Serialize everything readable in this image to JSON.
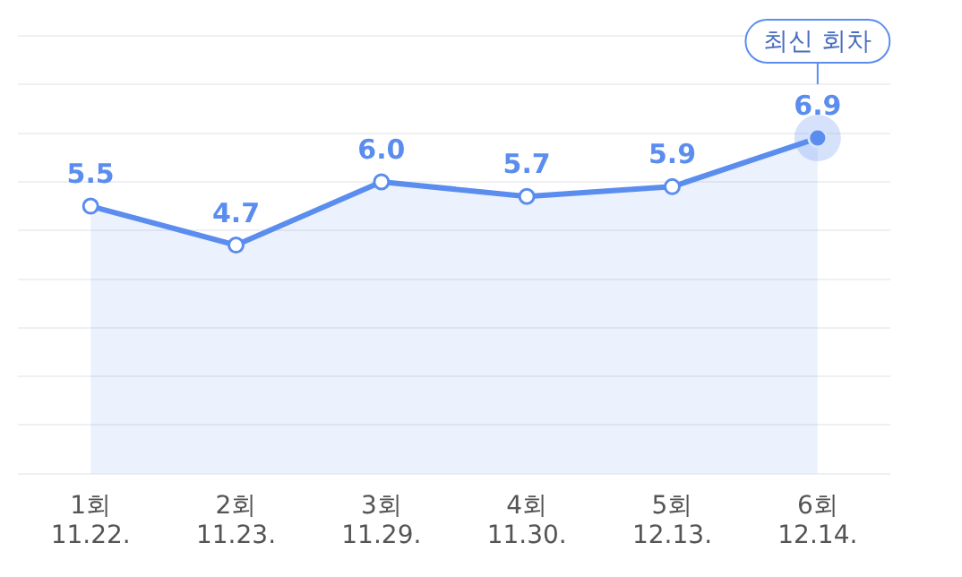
{
  "chart_data": {
    "type": "area",
    "categories": [
      "1회\n11.22.",
      "2회\n11.23.",
      "3회\n11.29.",
      "4회\n11.30.",
      "5회\n12.13.",
      "6회\n12.14."
    ],
    "series": [
      {
        "color": "#5b8def",
        "values": [
          5.5,
          4.7,
          6.0,
          5.7,
          5.9,
          6.9
        ],
        "value_labels": [
          "5.5",
          "4.7",
          "6.0",
          "5.7",
          "5.9",
          "6.9"
        ]
      }
    ],
    "grid": "y",
    "legend": false,
    "marker": "circle",
    "line_style": "solid",
    "annotations": [
      "최신 회차"
    ]
  }
}
